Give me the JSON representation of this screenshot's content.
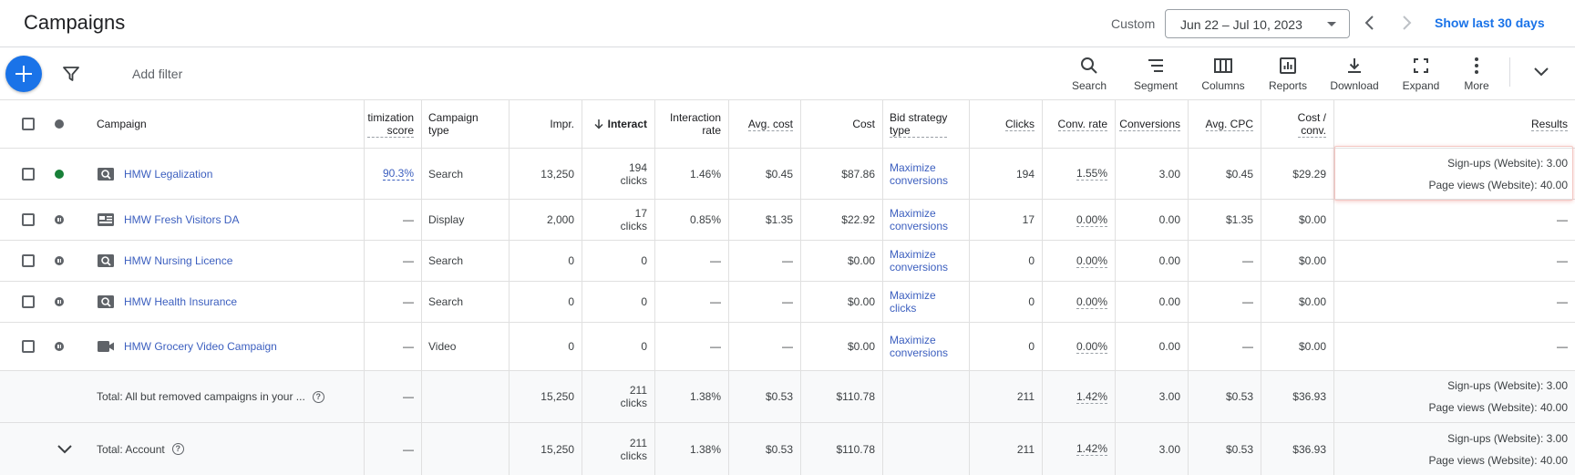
{
  "header": {
    "title": "Campaigns",
    "range_label": "Custom",
    "date_range": "Jun 22 – Jul 10, 2023",
    "show_last": "Show last 30 days"
  },
  "toolbar": {
    "add_filter": "Add filter",
    "buttons": [
      {
        "label": "Search",
        "icon": "search-icon"
      },
      {
        "label": "Segment",
        "icon": "segment-icon"
      },
      {
        "label": "Columns",
        "icon": "columns-icon"
      },
      {
        "label": "Reports",
        "icon": "reports-icon"
      },
      {
        "label": "Download",
        "icon": "download-icon"
      },
      {
        "label": "Expand",
        "icon": "expand-icon"
      },
      {
        "label": "More",
        "icon": "more-vert-icon"
      }
    ]
  },
  "table": {
    "headers": {
      "campaign": "Campaign",
      "opt_score": "timization score",
      "campaign_type_1": "Campaign",
      "campaign_type_2": "type",
      "impr": "Impr.",
      "interactions": "Interact",
      "interaction_rate_1": "Interaction",
      "interaction_rate_2": "rate",
      "avg_cost": "Avg. cost",
      "cost": "Cost",
      "bid_strategy_1": "Bid strategy",
      "bid_strategy_2": "type",
      "clicks": "Clicks",
      "conv_rate": "Conv. rate",
      "conversions": "Conversions",
      "avg_cpc": "Avg. CPC",
      "cost_conv_1": "Cost /",
      "cost_conv_2": "conv.",
      "results": "Results"
    },
    "rows": [
      {
        "status": "enabled",
        "type_icon": "search-campaign-icon",
        "name": "HMW Legalization",
        "opt": "90.3%",
        "type": "Search",
        "impr": "13,250",
        "inter_1": "194",
        "inter_2": "clicks",
        "rate": "1.46%",
        "avg_cost": "$0.45",
        "cost": "$87.86",
        "bid_1": "Maximize",
        "bid_2": "conversions",
        "clicks": "194",
        "conv_rate": "1.55%",
        "conversions": "3.00",
        "avg_cpc": "$0.45",
        "cost_conv": "$29.29",
        "res_1": "Sign-ups (Website): 3.00",
        "res_2": "Page views (Website): 40.00"
      },
      {
        "status": "paused",
        "type_icon": "display-campaign-icon",
        "name": "HMW Fresh Visitors DA",
        "opt": "—",
        "type": "Display",
        "impr": "2,000",
        "inter_1": "17",
        "inter_2": "clicks",
        "rate": "0.85%",
        "avg_cost": "$1.35",
        "cost": "$22.92",
        "bid_1": "Maximize",
        "bid_2": "conversions",
        "clicks": "17",
        "conv_rate": "0.00%",
        "conversions": "0.00",
        "avg_cpc": "$1.35",
        "cost_conv": "$0.00",
        "res_1": "—",
        "res_2": ""
      },
      {
        "status": "paused",
        "type_icon": "search-campaign-icon",
        "name": "HMW Nursing Licence",
        "opt": "—",
        "type": "Search",
        "impr": "0",
        "inter_1": "0",
        "inter_2": "",
        "rate": "—",
        "avg_cost": "—",
        "cost": "$0.00",
        "bid_1": "Maximize",
        "bid_2": "conversions",
        "clicks": "0",
        "conv_rate": "0.00%",
        "conversions": "0.00",
        "avg_cpc": "—",
        "cost_conv": "$0.00",
        "res_1": "—",
        "res_2": ""
      },
      {
        "status": "paused",
        "type_icon": "search-campaign-icon",
        "name": "HMW Health Insurance",
        "opt": "—",
        "type": "Search",
        "impr": "0",
        "inter_1": "0",
        "inter_2": "",
        "rate": "—",
        "avg_cost": "—",
        "cost": "$0.00",
        "bid_1": "Maximize",
        "bid_2": "clicks",
        "clicks": "0",
        "conv_rate": "0.00%",
        "conversions": "0.00",
        "avg_cpc": "—",
        "cost_conv": "$0.00",
        "res_1": "—",
        "res_2": ""
      },
      {
        "status": "paused",
        "type_icon": "video-campaign-icon",
        "name": "HMW Grocery Video Campaign",
        "opt": "—",
        "type": "Video",
        "impr": "0",
        "inter_1": "0",
        "inter_2": "",
        "rate": "—",
        "avg_cost": "—",
        "cost": "$0.00",
        "bid_1": "Maximize",
        "bid_2": "conversions",
        "clicks": "0",
        "conv_rate": "0.00%",
        "conversions": "0.00",
        "avg_cpc": "—",
        "cost_conv": "$0.00",
        "res_1": "—",
        "res_2": ""
      }
    ],
    "totals": [
      {
        "name": "Total: All but removed campaigns in your ...",
        "opt": "—",
        "impr": "15,250",
        "inter_1": "211",
        "inter_2": "clicks",
        "rate": "1.38%",
        "avg_cost": "$0.53",
        "cost": "$110.78",
        "clicks": "211",
        "conv_rate": "1.42%",
        "conversions": "3.00",
        "avg_cpc": "$0.53",
        "cost_conv": "$36.93",
        "res_1": "Sign-ups (Website): 3.00",
        "res_2": "Page views (Website): 40.00"
      },
      {
        "name": "Total: Account",
        "opt": "—",
        "impr": "15,250",
        "inter_1": "211",
        "inter_2": "clicks",
        "rate": "1.38%",
        "avg_cost": "$0.53",
        "cost": "$110.78",
        "clicks": "211",
        "conv_rate": "1.42%",
        "conversions": "3.00",
        "avg_cpc": "$0.53",
        "cost_conv": "$36.93",
        "res_1": "Sign-ups (Website): 3.00",
        "res_2": "Page views (Website): 40.00"
      }
    ]
  }
}
